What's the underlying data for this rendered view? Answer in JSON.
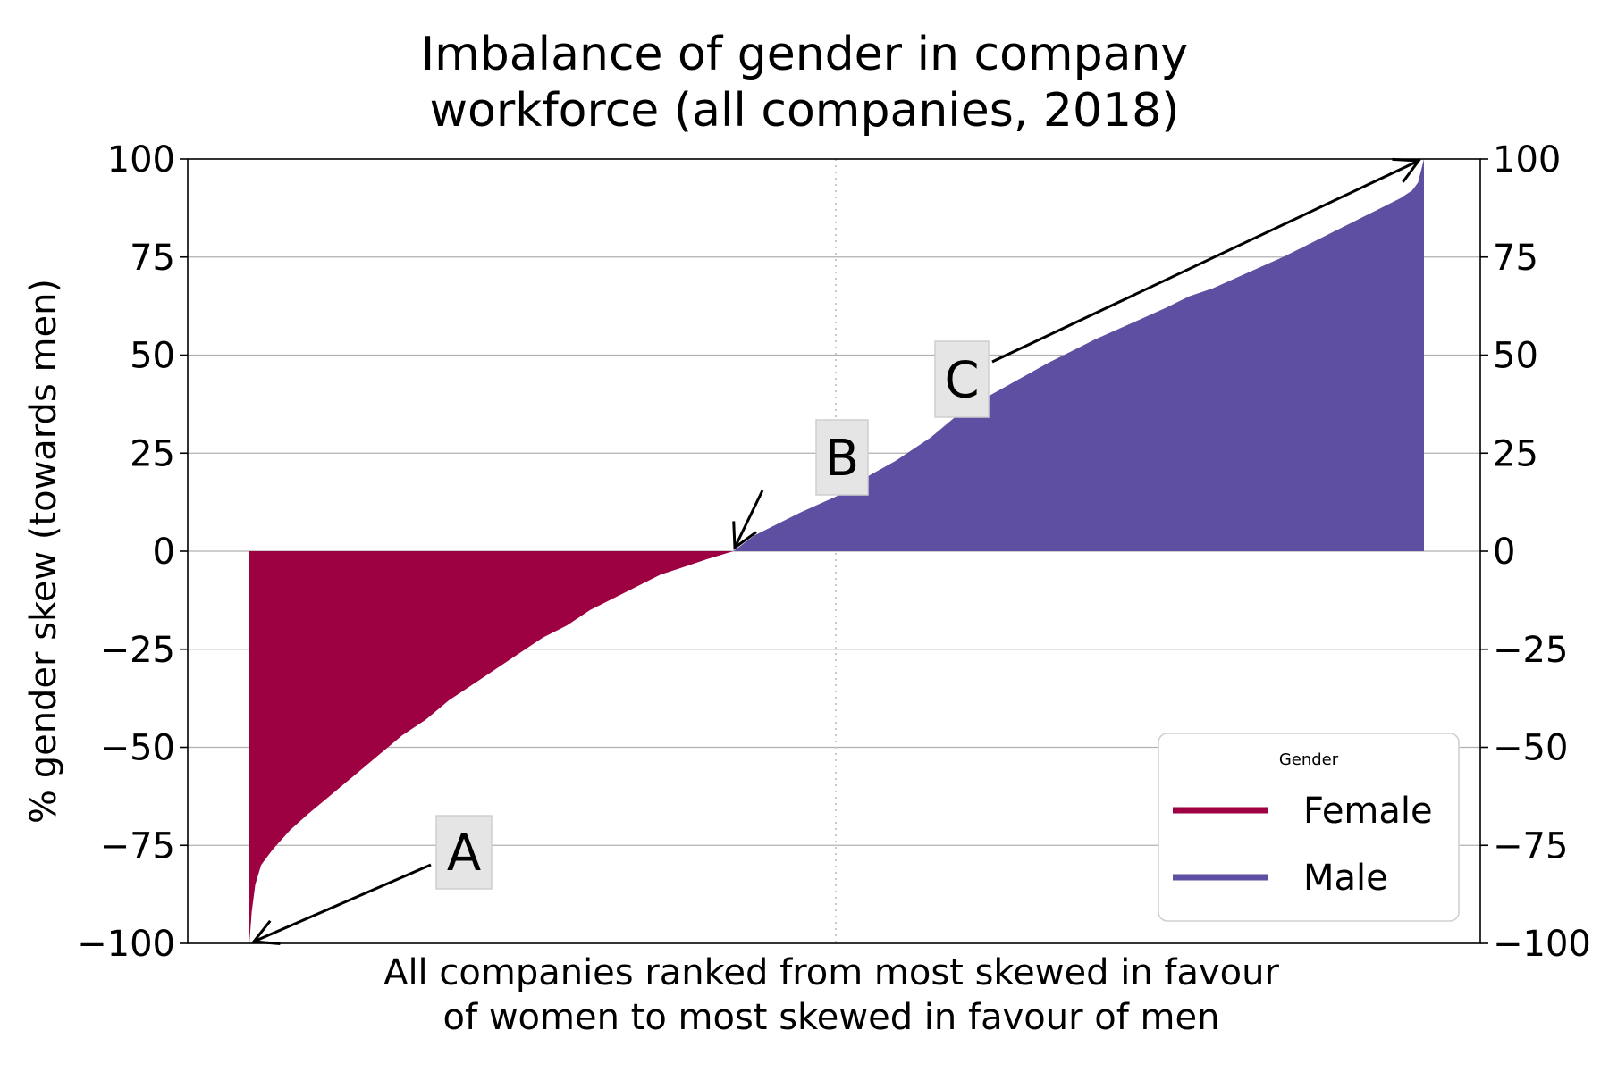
{
  "chart_data": {
    "type": "area",
    "title": "Imbalance of gender in company\nworkforce (all companies, 2018)",
    "xlabel": "All companies ranked from most skewed in favour\nof women to most skewed in favour of men",
    "ylabel": "% gender skew (towards men)",
    "ylim": [
      -100,
      100
    ],
    "yticks": [
      100,
      75,
      50,
      25,
      0,
      -25,
      -50,
      -75,
      -100
    ],
    "ytick_labels": [
      "100",
      "75",
      "50",
      "25",
      "0",
      "−25",
      "−50",
      "−75",
      "−100"
    ],
    "xlim_rank_fraction": [
      0,
      1
    ],
    "grid": "horizontal",
    "median_line": true,
    "legend": {
      "title": "Gender",
      "placement": "lower-right",
      "entries": [
        {
          "label": "Female",
          "color": "#9e0142"
        },
        {
          "label": "Male",
          "color": "#5e4fa2"
        }
      ]
    },
    "series": [
      {
        "name": "Female",
        "color": "#9e0142",
        "x": [
          0.0,
          0.002,
          0.005,
          0.01,
          0.02,
          0.035,
          0.05,
          0.07,
          0.09,
          0.11,
          0.13,
          0.15,
          0.17,
          0.19,
          0.21,
          0.23,
          0.25,
          0.27,
          0.29,
          0.31,
          0.33,
          0.35,
          0.37,
          0.39,
          0.412
        ],
        "values": [
          -100,
          -92,
          -85,
          -80,
          -76,
          -71,
          -67,
          -62,
          -57,
          -52,
          -47,
          -43,
          -38,
          -34,
          -30,
          -26,
          -22,
          -19,
          -15,
          -12,
          -9,
          -6,
          -4,
          -2,
          0
        ]
      },
      {
        "name": "Male",
        "color": "#5e4fa2",
        "x": [
          0.412,
          0.43,
          0.45,
          0.47,
          0.5,
          0.52,
          0.55,
          0.58,
          0.6,
          0.62,
          0.65,
          0.68,
          0.7,
          0.72,
          0.75,
          0.78,
          0.8,
          0.82,
          0.85,
          0.88,
          0.9,
          0.92,
          0.94,
          0.96,
          0.98,
          0.99,
          0.995,
          1.0
        ],
        "values": [
          0,
          4,
          7,
          10,
          14,
          18,
          23,
          29,
          34,
          38,
          43,
          48,
          51,
          54,
          58,
          62,
          65,
          67,
          71,
          75,
          78,
          81,
          84,
          87,
          90,
          92,
          94,
          100
        ]
      }
    ],
    "annotations": [
      {
        "text": "A",
        "points_to": {
          "x": 0.0,
          "y": -100
        }
      },
      {
        "text": "B",
        "points_to": {
          "x": 0.412,
          "y": 0
        }
      },
      {
        "text": "C",
        "points_to": {
          "x": 1.0,
          "y": 100
        }
      }
    ]
  }
}
